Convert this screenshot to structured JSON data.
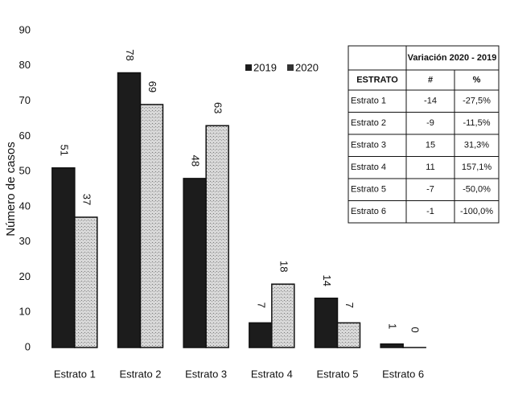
{
  "chart_data": {
    "type": "bar",
    "ylabel": "Número de casos",
    "categories": [
      "Estrato 1",
      "Estrato 2",
      "Estrato 3",
      "Estrato 4",
      "Estrato 5",
      "Estrato 6"
    ],
    "series": [
      {
        "name": "2019",
        "color": "#1c1c1c",
        "values": [
          51,
          78,
          48,
          7,
          14,
          1
        ]
      },
      {
        "name": "2020",
        "color": "#d4d4d4",
        "values": [
          37,
          69,
          63,
          18,
          7,
          0
        ]
      }
    ],
    "ylim": [
      0,
      90
    ],
    "yticks": [
      0,
      10,
      20,
      30,
      40,
      50,
      60,
      70,
      80,
      90
    ],
    "grid": false
  },
  "table": {
    "title": "Variación 2020 - 2019",
    "header": [
      "ESTRATO",
      "#",
      "%"
    ],
    "rows": [
      [
        "Estrato 1",
        "-14",
        "-27,5%"
      ],
      [
        "Estrato 2",
        "-9",
        "-11,5%"
      ],
      [
        "Estrato 3",
        "15",
        "31,3%"
      ],
      [
        "Estrato 4",
        "11",
        "157,1%"
      ],
      [
        "Estrato 5",
        "-7",
        "-50,0%"
      ],
      [
        "Estrato 6",
        "-1",
        "-100,0%"
      ]
    ]
  }
}
